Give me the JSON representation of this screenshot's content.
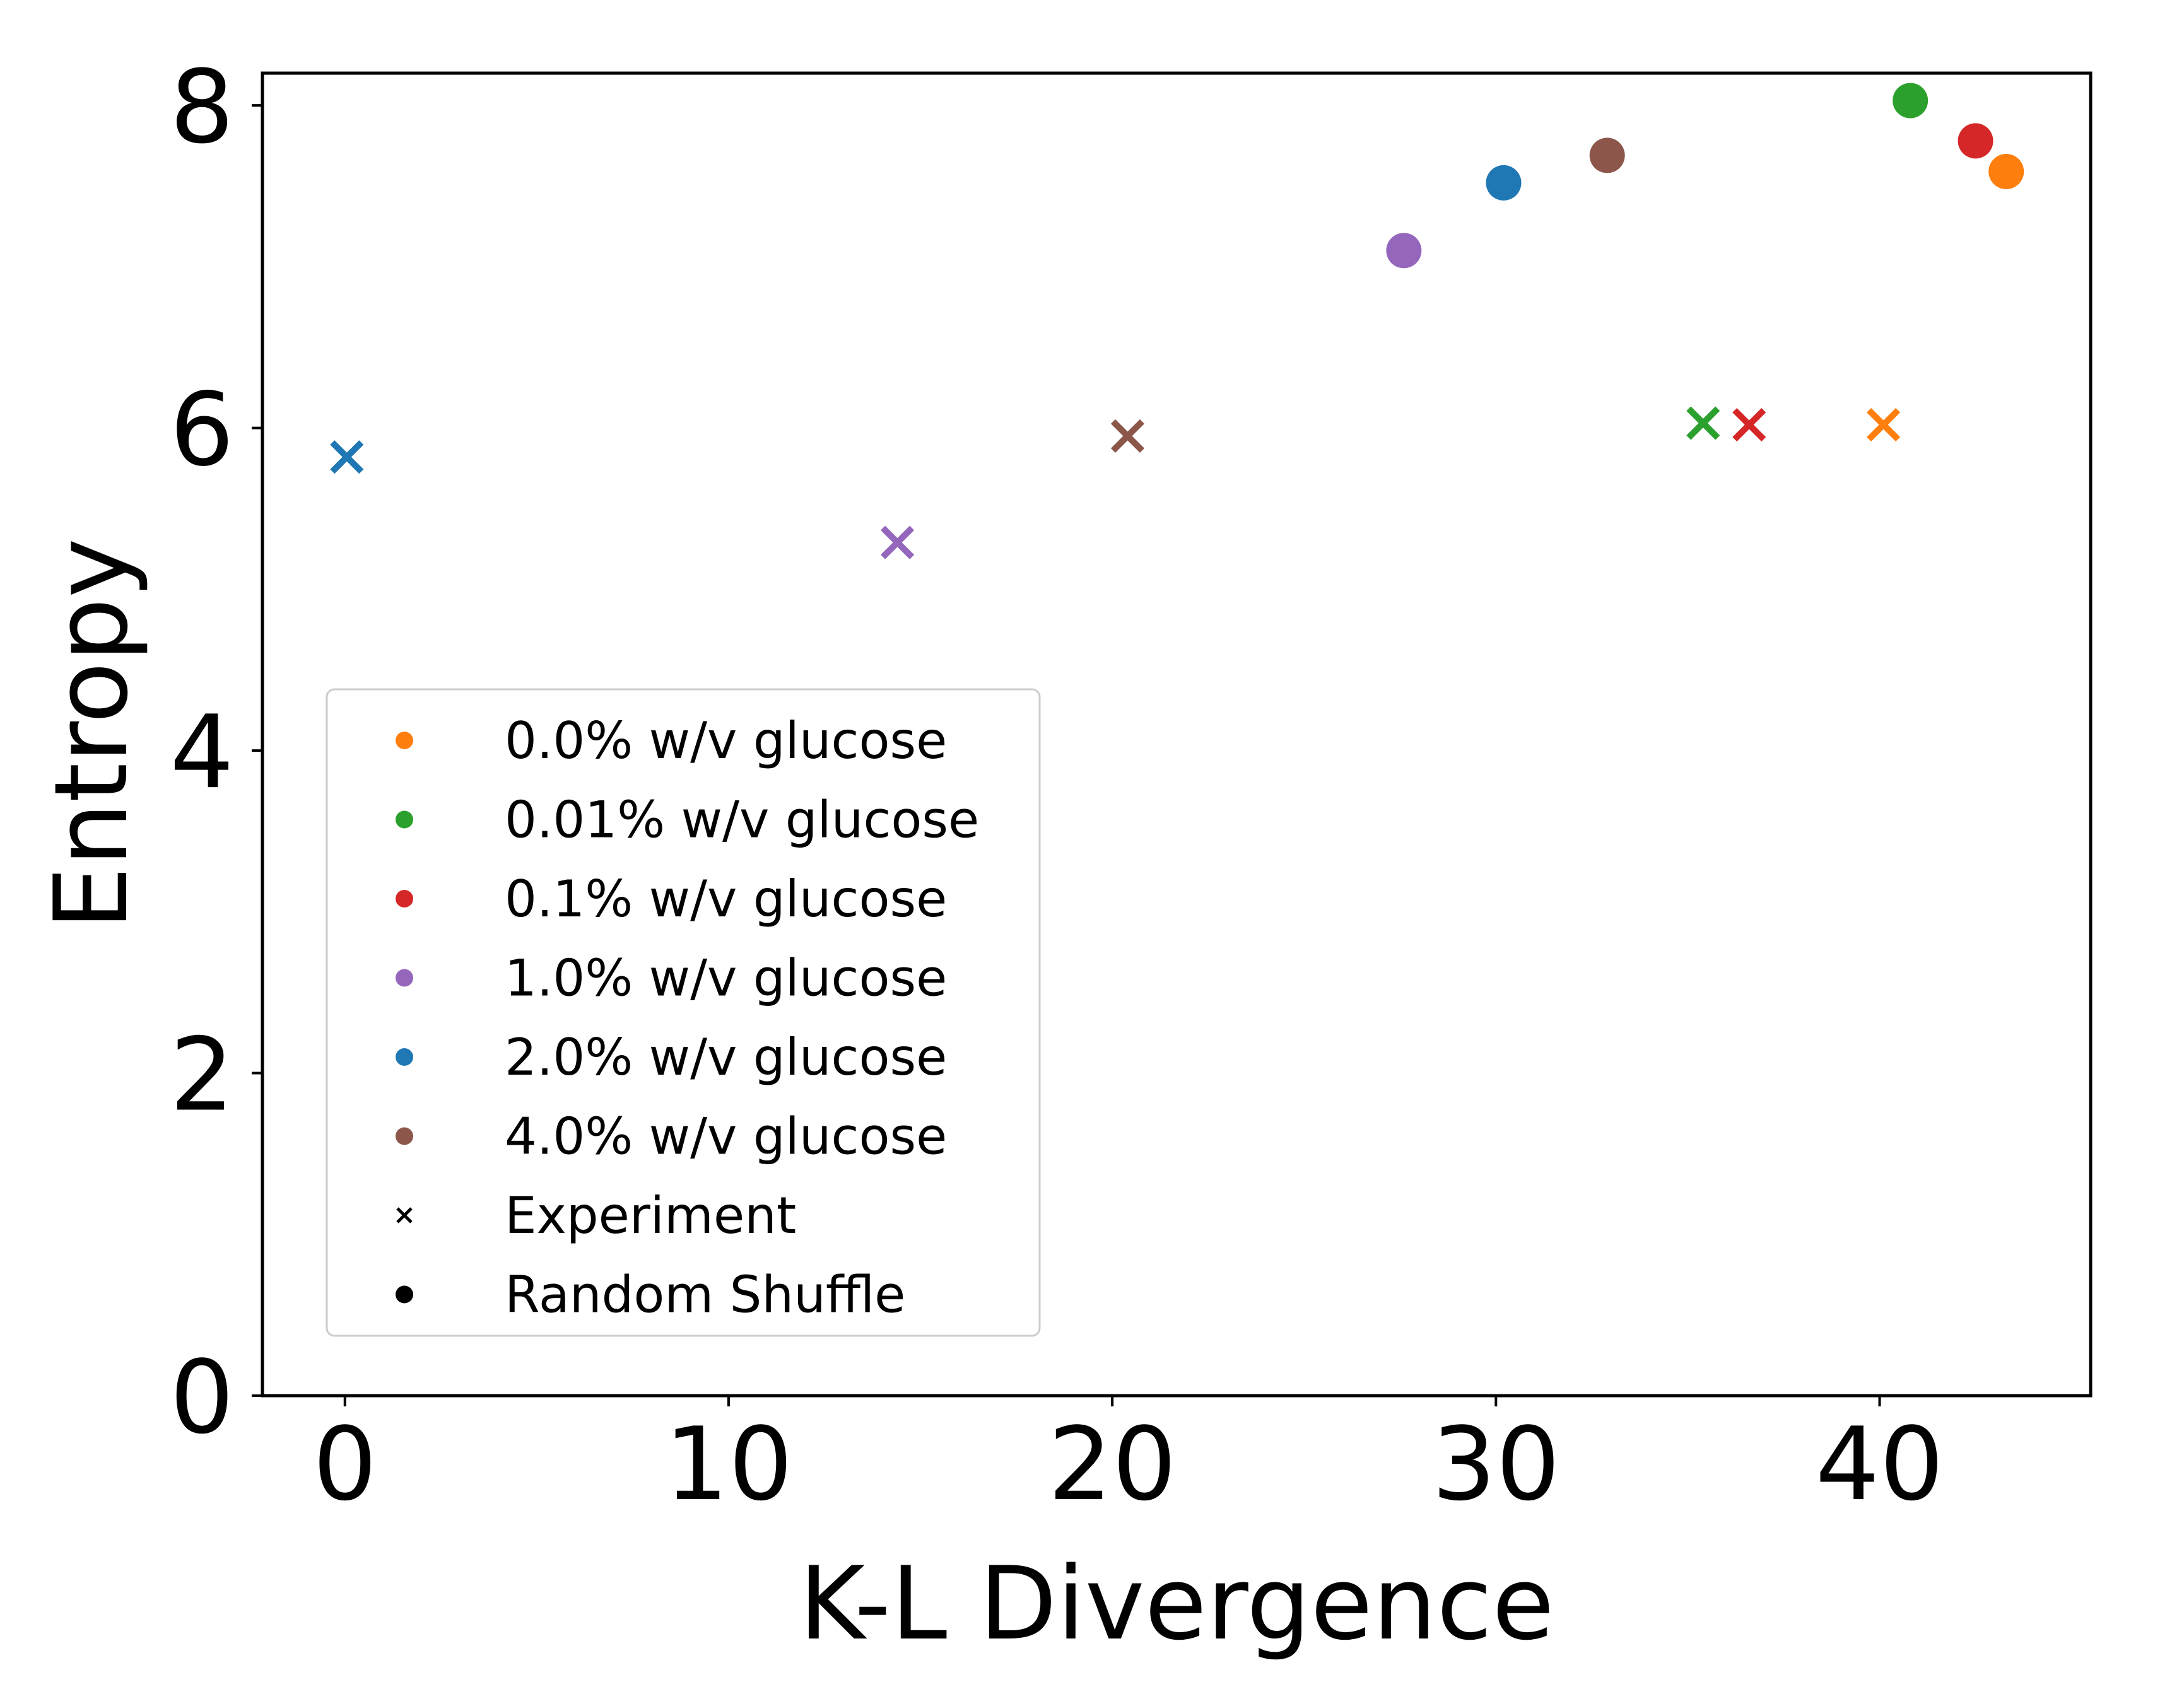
{
  "chart_data": {
    "type": "scatter",
    "xlabel": "K-L Divergence",
    "ylabel": "Entropy",
    "xlim": [
      -2.15,
      45.5
    ],
    "ylim": [
      0,
      8.2
    ],
    "xticks": [
      0,
      10,
      20,
      30,
      40
    ],
    "yticks": [
      0,
      2,
      4,
      6,
      8
    ],
    "grid": false,
    "legend_position": "lower-left",
    "series": [
      {
        "name": "0.0% w/v glucose",
        "color": "#ff7f0e",
        "experiment": {
          "x": 40.1,
          "y": 6.02
        },
        "random_shuffle": {
          "x": 43.3,
          "y": 7.59
        }
      },
      {
        "name": "0.01% w/v glucose",
        "color": "#2ca02c",
        "experiment": {
          "x": 35.4,
          "y": 6.03
        },
        "random_shuffle": {
          "x": 40.8,
          "y": 8.03
        }
      },
      {
        "name": "0.1% w/v glucose",
        "color": "#d62728",
        "experiment": {
          "x": 36.6,
          "y": 6.02
        },
        "random_shuffle": {
          "x": 42.5,
          "y": 7.78
        }
      },
      {
        "name": "1.0% w/v glucose",
        "color": "#9467bd",
        "experiment": {
          "x": 14.4,
          "y": 5.29
        },
        "random_shuffle": {
          "x": 27.6,
          "y": 7.1
        }
      },
      {
        "name": "2.0% w/v glucose",
        "color": "#1f77b4",
        "experiment": {
          "x": 0.05,
          "y": 5.82
        },
        "random_shuffle": {
          "x": 30.2,
          "y": 7.52
        }
      },
      {
        "name": "4.0% w/v glucose",
        "color": "#8c564b",
        "experiment": {
          "x": 20.4,
          "y": 5.95
        },
        "random_shuffle": {
          "x": 32.9,
          "y": 7.69
        }
      }
    ],
    "marker_legend": [
      {
        "label": "Experiment",
        "marker": "x"
      },
      {
        "label": "Random Shuffle",
        "marker": "o"
      }
    ]
  }
}
